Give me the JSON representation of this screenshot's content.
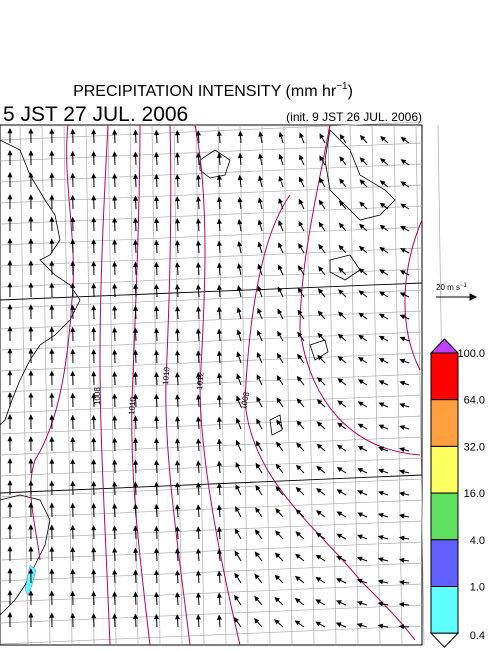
{
  "header": {
    "title": "PRECIPITATION INTENSITY (mm hr",
    "title_superscript": "−1",
    "title_close": ")",
    "valid_time": "5 JST 27 JUL. 2006",
    "init_time": "(init. 9 JST 26 JUL. 2006)"
  },
  "vector_scale": {
    "label": "20 m s",
    "superscript": "−1"
  },
  "contour_labels": [
    "1008",
    "1010",
    "1010",
    "1012",
    "1008"
  ],
  "colorbar": {
    "levels": [
      {
        "value": 100,
        "label": "100.0"
      },
      {
        "value": 64,
        "label": "64.0"
      },
      {
        "value": 32,
        "label": "32.0"
      },
      {
        "value": 16,
        "label": "16.0"
      },
      {
        "value": 4,
        "label": "4.0"
      },
      {
        "value": 1,
        "label": "1.0"
      },
      {
        "value": 0.4,
        "label": "0.4"
      }
    ],
    "colors": [
      "#ff0000",
      "#ffa040",
      "#ffff60",
      "#60e060",
      "#6060ff",
      "#60ffff"
    ],
    "over_color": "#c040ff",
    "under_color": "#ffffff"
  }
}
